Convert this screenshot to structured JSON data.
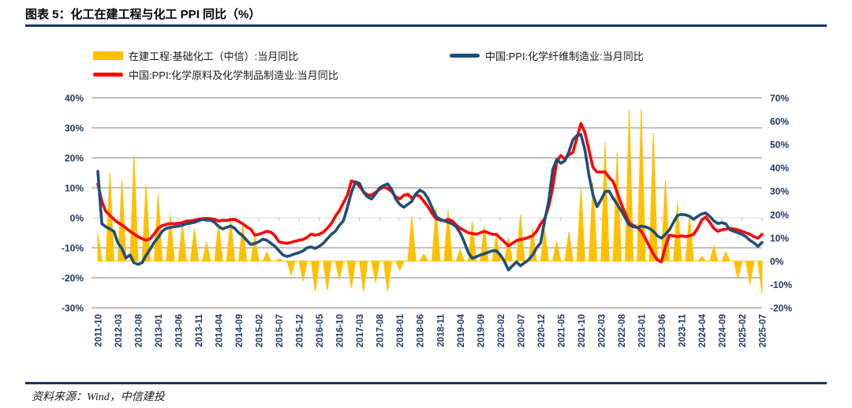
{
  "header": {
    "title": "图表 5：化工在建工程与化工 PPI 同比（%）"
  },
  "footer": {
    "source_label": "资料来源：Wind，中信建投"
  },
  "legend": [
    {
      "label": "在建工程:基础化工（中信）:当月同比",
      "color": "#FFC000",
      "type": "bar"
    },
    {
      "label": "中国:PPI:化学纤维制造业:当月同比",
      "color": "#1F4E79",
      "type": "line"
    },
    {
      "label": "中国:PPI:化学原料及化学制品制造业:当月同比",
      "color": "#FF0000",
      "type": "line"
    }
  ],
  "colors": {
    "bar": "#FFC000",
    "line_fiber": "#1F4E79",
    "line_raw": "#FF0000",
    "gridline": "#808080",
    "zero_line": "#d9d9d9",
    "tick": "#bfbfbf",
    "axis_text": "#1f3864",
    "rule": "#17375E"
  },
  "chart_data": {
    "type": "combo-dual-axis (area spikes + 2 lines)",
    "title": "化工在建工程与化工 PPI 同比（%）",
    "x_start": "2011-10",
    "x_end": "2025-07",
    "months_count": 166,
    "grid": "horizontal only",
    "legend_position": "top",
    "x_tick_labels": [
      "2011-10",
      "2012-03",
      "2012-08",
      "2013-01",
      "2013-06",
      "2013-11",
      "2014-04",
      "2014-09",
      "2015-02",
      "2015-07",
      "2015-12",
      "2016-05",
      "2016-10",
      "2017-03",
      "2017-08",
      "2018-01",
      "2018-06",
      "2018-11",
      "2019-04",
      "2019-09",
      "2020-02",
      "2020-07",
      "2020-12",
      "2021-05",
      "2021-10",
      "2022-03",
      "2022-08",
      "2023-01",
      "2023-06",
      "2023-11",
      "2024-04",
      "2024-09",
      "2025-02",
      "2025-07"
    ],
    "x_tick_step_months": 5,
    "left_axis": {
      "min": -30,
      "max": 40,
      "tick_values": [
        40,
        30,
        20,
        10,
        0,
        -10,
        -20,
        -30
      ],
      "tick_labels": [
        "40%",
        "30%",
        "20%",
        "10%",
        "0%",
        "-10%",
        "-20%",
        "-30%"
      ]
    },
    "right_axis": {
      "min": -20,
      "max": 70,
      "tick_values": [
        70,
        60,
        50,
        40,
        30,
        20,
        10,
        0,
        -10,
        -20
      ],
      "tick_labels": [
        "70%",
        "60%",
        "50%",
        "40%",
        "30%",
        "20%",
        "10%",
        "0%",
        "-10%",
        "-20%"
      ]
    },
    "series": [
      {
        "name": "在建工程:基础化工（中信）:当月同比",
        "axis": "right",
        "type": "area-spikes",
        "color": "#FFC000",
        "note": "zero between spike months; quarterly spikes (Jan/Apr/Jul/Oct)",
        "points": [
          [
            "2011-10",
            12
          ],
          [
            "2012-01",
            38
          ],
          [
            "2012-04",
            35
          ],
          [
            "2012-07",
            45
          ],
          [
            "2012-10",
            33
          ],
          [
            "2013-01",
            29
          ],
          [
            "2013-04",
            20
          ],
          [
            "2013-07",
            16
          ],
          [
            "2013-10",
            14
          ],
          [
            "2014-01",
            8
          ],
          [
            "2014-04",
            16
          ],
          [
            "2014-07",
            18
          ],
          [
            "2014-10",
            16
          ],
          [
            "2015-01",
            11
          ],
          [
            "2015-04",
            4
          ],
          [
            "2015-07",
            1
          ],
          [
            "2015-10",
            -6
          ],
          [
            "2016-01",
            -8.5
          ],
          [
            "2016-04",
            -13
          ],
          [
            "2016-07",
            -12.5
          ],
          [
            "2016-10",
            -8
          ],
          [
            "2017-01",
            -11.5
          ],
          [
            "2017-04",
            -13
          ],
          [
            "2017-07",
            -9
          ],
          [
            "2017-10",
            -13
          ],
          [
            "2018-01",
            -4
          ],
          [
            "2018-04",
            19
          ],
          [
            "2018-07",
            3
          ],
          [
            "2018-10",
            23
          ],
          [
            "2019-01",
            22
          ],
          [
            "2019-04",
            5
          ],
          [
            "2019-07",
            17
          ],
          [
            "2019-10",
            15
          ],
          [
            "2020-01",
            11.5
          ],
          [
            "2020-04",
            10
          ],
          [
            "2020-07",
            20
          ],
          [
            "2020-10",
            14
          ],
          [
            "2021-01",
            13
          ],
          [
            "2021-04",
            8.5
          ],
          [
            "2021-07",
            12.5
          ],
          [
            "2021-10",
            31.5
          ],
          [
            "2022-01",
            34
          ],
          [
            "2022-04",
            51
          ],
          [
            "2022-07",
            46.5
          ],
          [
            "2022-10",
            65
          ],
          [
            "2023-01",
            65
          ],
          [
            "2023-04",
            55
          ],
          [
            "2023-07",
            35
          ],
          [
            "2023-10",
            25
          ],
          [
            "2024-01",
            20
          ],
          [
            "2024-04",
            2
          ],
          [
            "2024-07",
            6.5
          ],
          [
            "2024-10",
            4
          ],
          [
            "2025-01",
            -7.5
          ],
          [
            "2025-04",
            -10
          ],
          [
            "2025-07",
            -14
          ]
        ]
      },
      {
        "name": "中国:PPI:化学原料及化学制品制造业:当月同比",
        "axis": "left",
        "type": "line",
        "color": "#FF0000",
        "values": [
          11.3,
          5.5,
          2.1,
          0.8,
          -0.5,
          -1.6,
          -2.4,
          -3.4,
          -4.5,
          -5.4,
          -6.3,
          -7,
          -7.5,
          -7,
          -5.4,
          -3.5,
          -2.6,
          -2.2,
          -1.9,
          -2,
          -1.8,
          -1.6,
          -1.1,
          -1,
          -0.8,
          -0.5,
          -0.3,
          -0.2,
          -0.3,
          -0.5,
          -1.1,
          -0.8,
          -0.9,
          -0.6,
          -0.5,
          -1.2,
          -2,
          -3,
          -3.8,
          -5.8,
          -5.5,
          -5,
          -4.5,
          -4.8,
          -6,
          -8,
          -8.3,
          -8.5,
          -8.2,
          -7.8,
          -7.5,
          -7.2,
          -6.5,
          -5.4,
          -5.8,
          -5.5,
          -4.8,
          -3.5,
          -1.9,
          0.5,
          2.4,
          5,
          7.6,
          12.3,
          11.9,
          10.5,
          8.7,
          7.6,
          7.6,
          8.5,
          9.5,
          10.3,
          9.8,
          8.7,
          7,
          6.3,
          7.5,
          7.9,
          6.5,
          7.6,
          7.2,
          5.5,
          3.7,
          1.5,
          -0.3,
          -0.8,
          -1,
          -0.5,
          -1,
          -2.4,
          -3.5,
          -4.2,
          -5,
          -5.2,
          -5.5,
          -5,
          -4.5,
          -5,
          -5.5,
          -5.5,
          -6.8,
          -8,
          -9.4,
          -8.5,
          -7.6,
          -7.2,
          -7,
          -6.5,
          -6,
          -4.5,
          -2,
          -0.3,
          3.7,
          10,
          18.7,
          20.8,
          19.5,
          21,
          21.8,
          26.6,
          31.5,
          28.4,
          22.6,
          16.8,
          15.3,
          15.3,
          15.3,
          13.5,
          12.1,
          8.5,
          4.7,
          1.5,
          -1.6,
          -2.5,
          -3.2,
          -4.5,
          -6.8,
          -9.5,
          -12.1,
          -14,
          -14.7,
          -9.5,
          -5.8,
          -6,
          -6.3,
          -6,
          -6.3,
          -6,
          -5.5,
          -3.5,
          -0.8,
          0.3,
          -1.5,
          -3.5,
          -4.5,
          -4,
          -3.8,
          -3.5,
          -3.7,
          -4,
          -4.5,
          -5,
          -5.5,
          -6.3,
          -6.8,
          -5.5
        ]
      },
      {
        "name": "中国:PPI:化学纤维制造业:当月同比",
        "axis": "left",
        "type": "line",
        "color": "#1F4E79",
        "values": [
          15.5,
          -2,
          -3,
          -3.7,
          -4.5,
          -8.4,
          -10.3,
          -13.4,
          -12.4,
          -15,
          -15.5,
          -15,
          -12.5,
          -10.5,
          -8.2,
          -6.5,
          -4.5,
          -3.5,
          -3.2,
          -3,
          -2.8,
          -2.5,
          -2,
          -1.8,
          -1.5,
          -1,
          -0.5,
          -0.8,
          -0.8,
          -1.5,
          -2.9,
          -3.7,
          -3.2,
          -2.7,
          -3.5,
          -5,
          -6,
          -7.5,
          -8.9,
          -8.5,
          -8,
          -7.1,
          -7.5,
          -8.5,
          -9.5,
          -11,
          -12.4,
          -12.9,
          -12.5,
          -12,
          -11.6,
          -11,
          -10,
          -9.7,
          -10.2,
          -9.5,
          -8.5,
          -7,
          -5.5,
          -4.5,
          -2.5,
          -1,
          3.5,
          8.5,
          12,
          11.5,
          8.5,
          7,
          6.3,
          8,
          10,
          10.8,
          11.3,
          9.5,
          6.3,
          4.5,
          3.5,
          4.5,
          5.5,
          8,
          9.2,
          8.5,
          6.5,
          3.5,
          0.5,
          -0.5,
          -1,
          -1.5,
          -2,
          -3,
          -5,
          -8,
          -11.5,
          -13.5,
          -13,
          -12.4,
          -12,
          -11.5,
          -11,
          -11,
          -12.4,
          -14.5,
          -17.4,
          -16,
          -14.7,
          -16,
          -15,
          -14,
          -12.4,
          -10,
          -8.4,
          -1,
          5.5,
          16,
          19.5,
          18.2,
          19,
          22,
          26,
          27.4,
          27.8,
          22.6,
          14.2,
          7.6,
          3.7,
          6,
          8.7,
          8.9,
          6.5,
          4.5,
          2.4,
          0,
          -2.4,
          -3,
          -3.2,
          -2.8,
          -3,
          -3.5,
          -4.5,
          -6,
          -6.8,
          -5.5,
          -4,
          -1.5,
          0.8,
          1.1,
          1,
          0.5,
          -0.5,
          0.5,
          1.3,
          1.6,
          0.5,
          -1,
          -1.9,
          -1.6,
          -2,
          -4,
          -4.5,
          -5,
          -5.5,
          -6.3,
          -7.5,
          -8.4,
          -9.5,
          -8.2
        ]
      }
    ]
  }
}
